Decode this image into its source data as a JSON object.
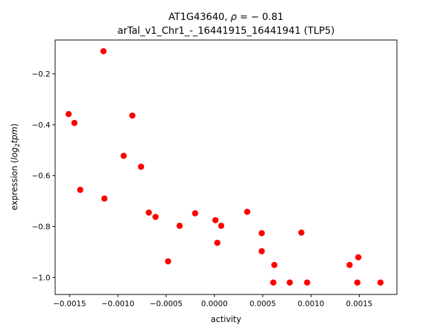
{
  "chart_data": {
    "type": "scatter",
    "title_line1": "AT1G43640, ",
    "title_rho": "ρ",
    "title_rho_tail": " = − 0.81",
    "title_line2": "arTal_v1_Chr1_-_16441915_16441941 (TLP5)",
    "xlabel": "activity",
    "ylabel_prefix": "expression (",
    "ylabel_log": "log",
    "ylabel_sub": "2",
    "ylabel_tpm": "tpm",
    "ylabel_suffix": ")",
    "xlim": [
      -0.00165,
      0.00189
    ],
    "ylim": [
      -1.067,
      -0.067
    ],
    "xticks": [
      {
        "value": -0.0015,
        "label": "−0.0015"
      },
      {
        "value": -0.001,
        "label": "−0.0010"
      },
      {
        "value": -0.0005,
        "label": "−0.0005"
      },
      {
        "value": 0.0,
        "label": "0.0000"
      },
      {
        "value": 0.0005,
        "label": "0.0005"
      },
      {
        "value": 0.001,
        "label": "0.0010"
      },
      {
        "value": 0.0015,
        "label": "0.0015"
      }
    ],
    "yticks": [
      {
        "value": -1.0,
        "label": "−1.0"
      },
      {
        "value": -0.8,
        "label": "−0.8"
      },
      {
        "value": -0.6,
        "label": "−0.6"
      },
      {
        "value": -0.4,
        "label": "−0.4"
      },
      {
        "value": -0.2,
        "label": "−0.2"
      }
    ],
    "point_color": "#ff0000",
    "grid": false,
    "points": [
      {
        "x": -0.00115,
        "y": -0.111
      },
      {
        "x": -0.00151,
        "y": -0.358
      },
      {
        "x": -0.00145,
        "y": -0.393
      },
      {
        "x": -0.00085,
        "y": -0.364
      },
      {
        "x": -0.00094,
        "y": -0.522
      },
      {
        "x": -0.00076,
        "y": -0.565
      },
      {
        "x": -0.00139,
        "y": -0.656
      },
      {
        "x": -0.00114,
        "y": -0.69
      },
      {
        "x": -0.00068,
        "y": -0.745
      },
      {
        "x": -0.00061,
        "y": -0.762
      },
      {
        "x": -0.00036,
        "y": -0.797
      },
      {
        "x": -0.0002,
        "y": -0.748
      },
      {
        "x": 1e-05,
        "y": -0.775
      },
      {
        "x": 7e-05,
        "y": -0.797
      },
      {
        "x": 3e-05,
        "y": -0.864
      },
      {
        "x": -0.00048,
        "y": -0.937
      },
      {
        "x": 0.00034,
        "y": -0.742
      },
      {
        "x": 0.00049,
        "y": -0.826
      },
      {
        "x": 0.00049,
        "y": -0.897
      },
      {
        "x": 0.00062,
        "y": -0.951
      },
      {
        "x": 0.00061,
        "y": -1.02
      },
      {
        "x": 0.00078,
        "y": -1.02
      },
      {
        "x": 0.0009,
        "y": -0.824
      },
      {
        "x": 0.00096,
        "y": -1.02
      },
      {
        "x": 0.0014,
        "y": -0.951
      },
      {
        "x": 0.00149,
        "y": -0.921
      },
      {
        "x": 0.00148,
        "y": -1.02
      },
      {
        "x": 0.00172,
        "y": -1.02
      }
    ]
  }
}
